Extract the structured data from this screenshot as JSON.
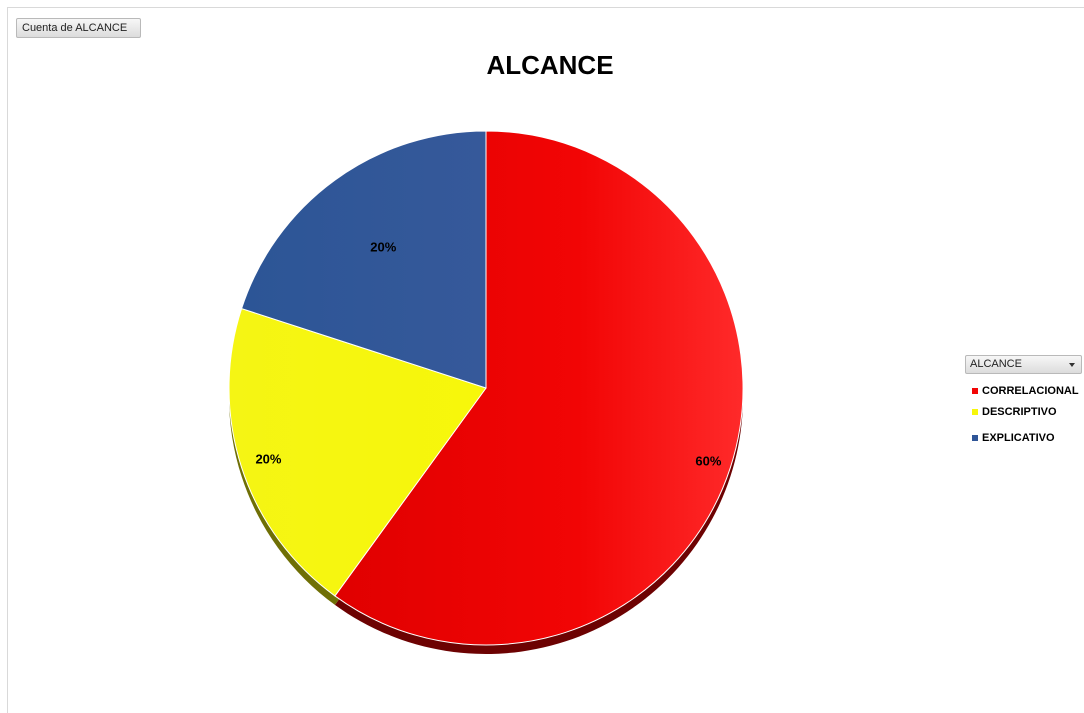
{
  "field_button": {
    "label": "Cuenta de ALCANCE"
  },
  "legend": {
    "filter_label": "ALCANCE",
    "filter_icon": "dropdown-arrow-icon"
  },
  "chart_data": {
    "type": "pie",
    "title": "ALCANCE",
    "categories": [
      "CORRELACIONAL",
      "DESCRIPTIVO",
      "EXPLICATIVO"
    ],
    "values": [
      60,
      20,
      20
    ],
    "data_labels": [
      "60%",
      "20%",
      "20%"
    ],
    "colors": [
      "#f20505",
      "#f7f70a",
      "#2f5597"
    ],
    "start_angle_deg": 0,
    "direction": "clockwise",
    "legend_position": "right"
  }
}
